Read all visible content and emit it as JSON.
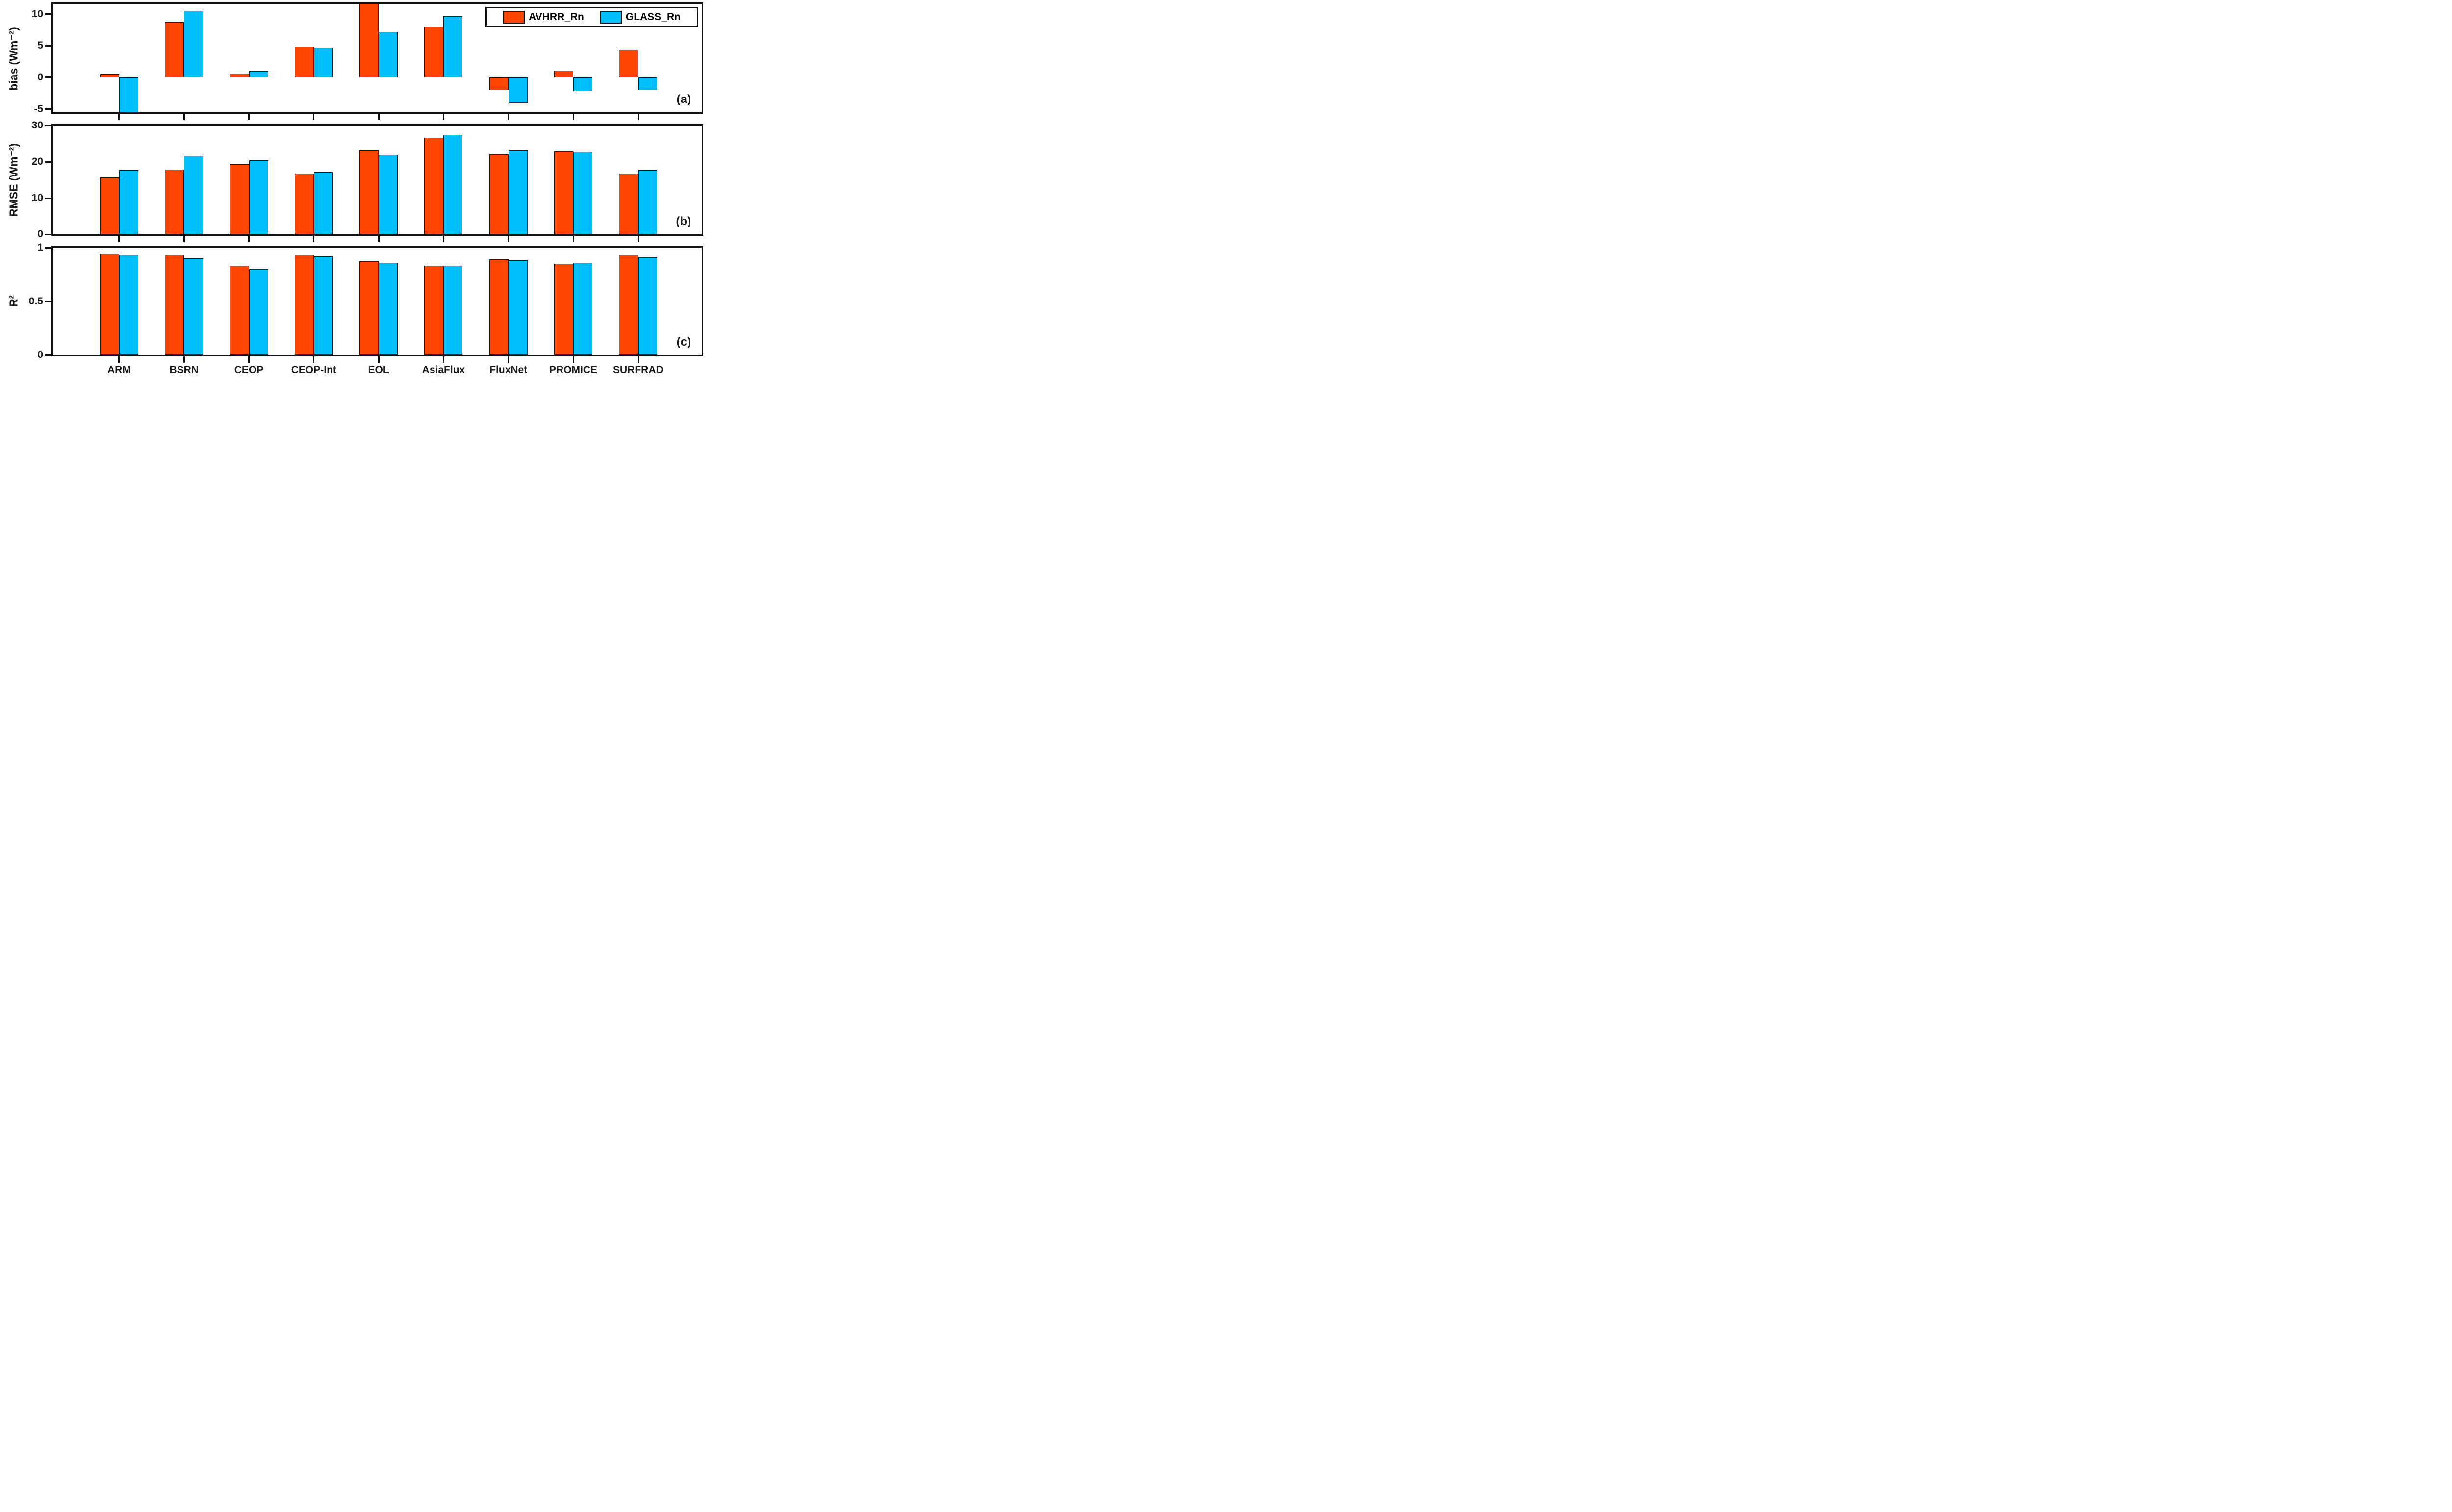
{
  "chart_data": {
    "type": "bar",
    "title": "",
    "categories": [
      "ARM",
      "BSRN",
      "CEOP",
      "CEOP-Int",
      "EOL",
      "AsiaFlux",
      "FluxNet",
      "PROMICE",
      "SURFRAD"
    ],
    "series": [
      {
        "name": "AVHRR_Rn",
        "color": "#FF4500"
      },
      {
        "name": "GLASS_Rn",
        "color": "#00BFFF"
      }
    ],
    "legend": {
      "entries": [
        "AVHRR_Rn",
        "GLASS_Rn"
      ],
      "position": "top-right inside panel (a)"
    },
    "axis_color": "#111111",
    "grid": false,
    "panels": [
      {
        "id": "a",
        "label": "(a)",
        "ylabel": "bias (Wm⁻²)",
        "ylim": [
          -5.5,
          11.6
        ],
        "yticks": [
          10,
          5,
          0,
          -5
        ],
        "series": [
          {
            "name": "AVHRR_Rn",
            "values": [
              0.5,
              8.7,
              0.6,
              4.9,
              11.7,
              8.0,
              -2.0,
              1.1,
              4.3
            ]
          },
          {
            "name": "GLASS_Rn",
            "values": [
              -5.6,
              10.5,
              1.0,
              4.7,
              7.2,
              9.7,
              -4.0,
              -2.2,
              -2.0
            ]
          }
        ],
        "clipped_bars": [
          "EOL AVHRR_Rn bar is clipped at the top axis edge",
          "ARM GLASS_Rn bar is clipped at the bottom axis edge"
        ]
      },
      {
        "id": "b",
        "label": "(b)",
        "ylabel": "RMSE (Wm⁻²)",
        "ylim": [
          0,
          30
        ],
        "yticks": [
          30,
          20,
          10,
          0
        ],
        "series": [
          {
            "name": "AVHRR_Rn",
            "values": [
              15.7,
              17.9,
              19.3,
              16.8,
              23.3,
              26.6,
              22.0,
              22.9,
              16.8
            ]
          },
          {
            "name": "GLASS_Rn",
            "values": [
              17.7,
              21.6,
              20.4,
              17.1,
              21.9,
              27.5,
              23.3,
              22.7,
              17.7
            ]
          }
        ]
      },
      {
        "id": "c",
        "label": "(c)",
        "ylabel": "R²",
        "ylim": [
          0,
          1
        ],
        "yticks": [
          1,
          0.5,
          0
        ],
        "series": [
          {
            "name": "AVHRR_Rn",
            "values": [
              0.94,
              0.93,
              0.83,
              0.93,
              0.87,
              0.83,
              0.89,
              0.85,
              0.93
            ]
          },
          {
            "name": "GLASS_Rn",
            "values": [
              0.93,
              0.9,
              0.8,
              0.92,
              0.86,
              0.83,
              0.88,
              0.86,
              0.91
            ]
          }
        ]
      }
    ]
  }
}
